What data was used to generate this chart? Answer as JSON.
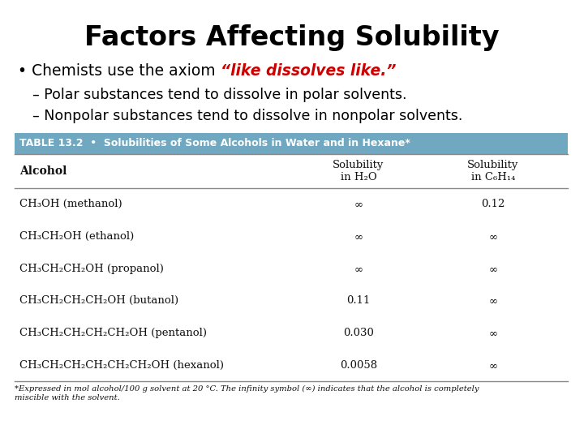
{
  "title": "Factors Affecting Solubility",
  "bullet_black": "• Chemists use the axiom ",
  "bullet_red": "“like dissolves like.”",
  "dash1": "– Polar substances tend to dissolve in polar solvents.",
  "dash2": "– Nonpolar substances tend to dissolve in nonpolar solvents.",
  "table_header": "TABLE 13.2  •  Solubilities of Some Alcohols in Water and in Hexane*",
  "table_header_bg": "#6fa8c0",
  "col_header0": "Alcohol",
  "col_header1": "Solubility\nin H₂O",
  "col_header2": "Solubility\nin C₆H₁₄",
  "rows": [
    [
      "CH₃OH (methanol)",
      "∞",
      "0.12"
    ],
    [
      "CH₃CH₂OH (ethanol)",
      "∞",
      "∞"
    ],
    [
      "CH₃CH₂CH₂OH (propanol)",
      "∞",
      "∞"
    ],
    [
      "CH₃CH₂CH₂CH₂OH (butanol)",
      "0.11",
      "∞"
    ],
    [
      "CH₃CH₂CH₂CH₂CH₂OH (pentanol)",
      "0.030",
      "∞"
    ],
    [
      "CH₃CH₂CH₂CH₂CH₂CH₂OH (hexanol)",
      "0.0058",
      "∞"
    ]
  ],
  "footnote": "*Expressed in mol alcohol/100 g solvent at 20 °C. The infinity symbol (∞) indicates that the alcohol is completely\nmiscible with the solvent.",
  "bg_color": "#ffffff",
  "title_color": "#000000",
  "text_color": "#000000",
  "red_color": "#cc0000",
  "table_text_color": "#111111",
  "table_header_text": "#ffffff",
  "line_color": "#888888"
}
